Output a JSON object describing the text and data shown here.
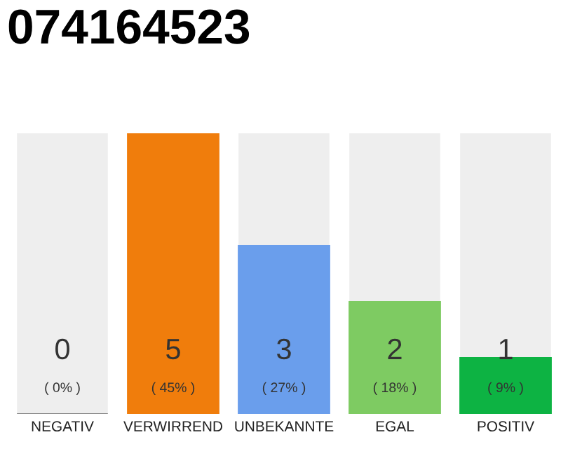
{
  "chart_data": {
    "type": "bar",
    "title": "074164523",
    "categories": [
      "NEGATIV",
      "VERWIRREND",
      "UNBEKANNTE",
      "EGAL",
      "POSITIV"
    ],
    "values": [
      0,
      5,
      3,
      2,
      1
    ],
    "colors": [
      "#888888",
      "#f07d0c",
      "#6a9eec",
      "#7ecb62",
      "#0db343"
    ],
    "value_labels": [
      "0",
      "5",
      "3",
      "2",
      "1"
    ],
    "annotations": [
      "( 0% )",
      "( 45% )",
      "( 27% )",
      "( 18% )",
      "( 9% )"
    ],
    "tick_labels": "x",
    "grid": false,
    "legend": false
  }
}
